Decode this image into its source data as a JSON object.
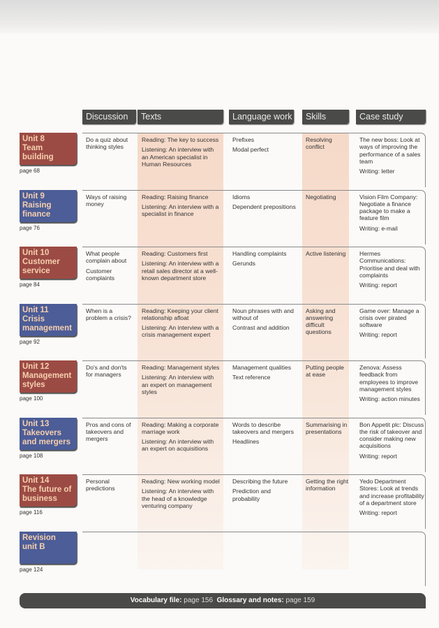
{
  "headers": [
    "Discussion",
    "Texts",
    "Language work",
    "Skills",
    "Case study"
  ],
  "colors": {
    "unit_red": "#9c4b44",
    "unit_blue": "#4c5d97",
    "header_bg": "#4a4a48",
    "shade": "#f6d9c8"
  },
  "units": [
    {
      "title": [
        "Unit 8",
        "Team building"
      ],
      "color": "red",
      "page": "page 68",
      "discussion": [
        "Do a quiz about thinking styles"
      ],
      "texts": [
        "Reading: The key to success",
        "Listening: An interview with an American specialist in Human Resources"
      ],
      "language": [
        "Prefixes",
        "Modal perfect"
      ],
      "skills": [
        "Resolving conflict"
      ],
      "case": [
        "The new boss: Look at ways of improving the performance of a sales team",
        "Writing: letter"
      ]
    },
    {
      "title": [
        "Unit 9",
        "Raising finance"
      ],
      "color": "blue",
      "page": "page 76",
      "discussion": [
        "Ways of raising money"
      ],
      "texts": [
        "Reading: Raising finance",
        "Listening: An interview with a specialist in finance"
      ],
      "language": [
        "Idioms",
        "Dependent prepositions"
      ],
      "skills": [
        "Negotiating"
      ],
      "case": [
        "Vision Film Company: Negotiate a finance package to make a feature film",
        "Writing: e-mail"
      ]
    },
    {
      "title": [
        "Unit 10",
        "Customer",
        "service"
      ],
      "color": "red",
      "page": "page 84",
      "discussion": [
        "What people complain about",
        "Customer complaints"
      ],
      "texts": [
        "Reading: Customers first",
        "Listening: An interview with a retail sales director at a well-known department store"
      ],
      "language": [
        "Handling complaints",
        "Gerunds"
      ],
      "skills": [
        "Active listening"
      ],
      "case": [
        "Hermes Communications: Prioritise and deal with complaints",
        "Writing: report"
      ]
    },
    {
      "title": [
        "Unit 11",
        "Crisis",
        "management"
      ],
      "color": "blue",
      "page": "page 92",
      "discussion": [
        "When is a problem a crisis?"
      ],
      "texts": [
        "Reading: Keeping your client relationship afloat",
        "Listening: An interview with a crisis management expert"
      ],
      "language": [
        "Noun phrases with and without of",
        "Contrast and addition"
      ],
      "skills": [
        "Asking and answering difficult questions"
      ],
      "case": [
        "Game over: Manage a crisis over pirated software",
        "Writing: report"
      ]
    },
    {
      "title": [
        "Unit 12",
        "Management",
        "styles"
      ],
      "color": "red",
      "page": "page 100",
      "discussion": [
        "Do's and don'ts for managers"
      ],
      "texts": [
        "Reading: Management styles",
        "Listening: An interview with an expert on management styles"
      ],
      "language": [
        "Management qualities",
        "Text reference"
      ],
      "skills": [
        "Putting people at ease"
      ],
      "case": [
        "Zenova: Assess feedback from employees to improve management styles",
        "Writing: action minutes"
      ]
    },
    {
      "title": [
        "Unit 13",
        "Takeovers",
        "and mergers"
      ],
      "color": "blue",
      "page": "page 108",
      "discussion": [
        "Pros and cons of takeovers and mergers"
      ],
      "texts": [
        "Reading: Making a corporate marriage work",
        "Listening: An interview with an expert on acquisitions"
      ],
      "language": [
        "Words to describe takeovers and mergers",
        "Headlines"
      ],
      "skills": [
        "Summarising in presentations"
      ],
      "case": [
        "Bon Appetit plc: Discuss the risk of takeover and consider making new acquisitions",
        "Writing: report"
      ]
    },
    {
      "title": [
        "Unit 14",
        "The future of",
        "business"
      ],
      "color": "red",
      "page": "page 116",
      "discussion": [
        "Personal predictions"
      ],
      "texts": [
        "Reading: New working model",
        "Listening: An interview with the head of a knowledge venturing company"
      ],
      "language": [
        "Describing the future",
        "Prediction and probability"
      ],
      "skills": [
        "Getting the right information"
      ],
      "case": [
        "Yedo Department Stores: Look at trends and increase profitability of a department store",
        "Writing: report"
      ]
    },
    {
      "title": [
        "Revision",
        "unit B"
      ],
      "color": "blue",
      "page": "page 124",
      "discussion": [],
      "texts": [],
      "language": [],
      "skills": [],
      "case": []
    }
  ],
  "footer": {
    "vocab_label": "Vocabulary file:",
    "vocab_page": "page 156",
    "glossary_label": "Glossary and notes:",
    "glossary_page": "page 159"
  }
}
